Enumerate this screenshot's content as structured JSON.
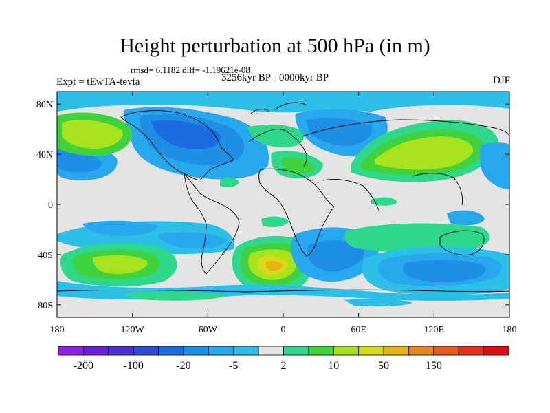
{
  "title": "Height perturbation at 500 hPa (in m)",
  "stats": "rmsd= 6.1182 diff= -1.19621e-08",
  "left_label": "Expt = tEwTA-tevta",
  "center_label": "3256kyr BP - 0000kyr BP",
  "right_label": "DJF",
  "lat_ticks": [
    {
      "label": "80N",
      "value": 80
    },
    {
      "label": "40N",
      "value": 40
    },
    {
      "label": "0",
      "value": 0
    },
    {
      "label": "40S",
      "value": -40
    },
    {
      "label": "80S",
      "value": -80
    }
  ],
  "lon_ticks": [
    {
      "label": "180",
      "value": -180
    },
    {
      "label": "120W",
      "value": -120
    },
    {
      "label": "60W",
      "value": -60
    },
    {
      "label": "0",
      "value": 0
    },
    {
      "label": "60E",
      "value": 60
    },
    {
      "label": "120E",
      "value": 120
    },
    {
      "label": "180",
      "value": 180
    }
  ],
  "colorbar": {
    "colors": [
      "#8b22e8",
      "#6a1fd8",
      "#4c2dd0",
      "#2f49d9",
      "#1a6ce0",
      "#1f8fe6",
      "#27a7ee",
      "#2bbfe8",
      "#e4e4e4",
      "#2ed88a",
      "#3fd23c",
      "#a6e21e",
      "#d7d919",
      "#e2b514",
      "#e2881a",
      "#e65a1f",
      "#e82d22",
      "#dd0d10"
    ],
    "labels": [
      {
        "text": "-200",
        "index": 1
      },
      {
        "text": "-100",
        "index": 3
      },
      {
        "text": "-20",
        "index": 5
      },
      {
        "text": "-5",
        "index": 7
      },
      {
        "text": "2",
        "index": 9
      },
      {
        "text": "10",
        "index": 11
      },
      {
        "text": "50",
        "index": 13
      },
      {
        "text": "150",
        "index": 15
      }
    ]
  },
  "field_colors": {
    "neutral": "#e4e4e4",
    "neg_light": "#2bbfe8",
    "neg_mid": "#27a7ee",
    "neg_dark": "#1f8fe6",
    "neg_deep": "#1a6ce0",
    "pos_light": "#2ed88a",
    "pos_mid": "#3fd23c",
    "pos_strong": "#a6e21e",
    "pos_yellow": "#d7d919",
    "pos_orange": "#e2b514"
  }
}
